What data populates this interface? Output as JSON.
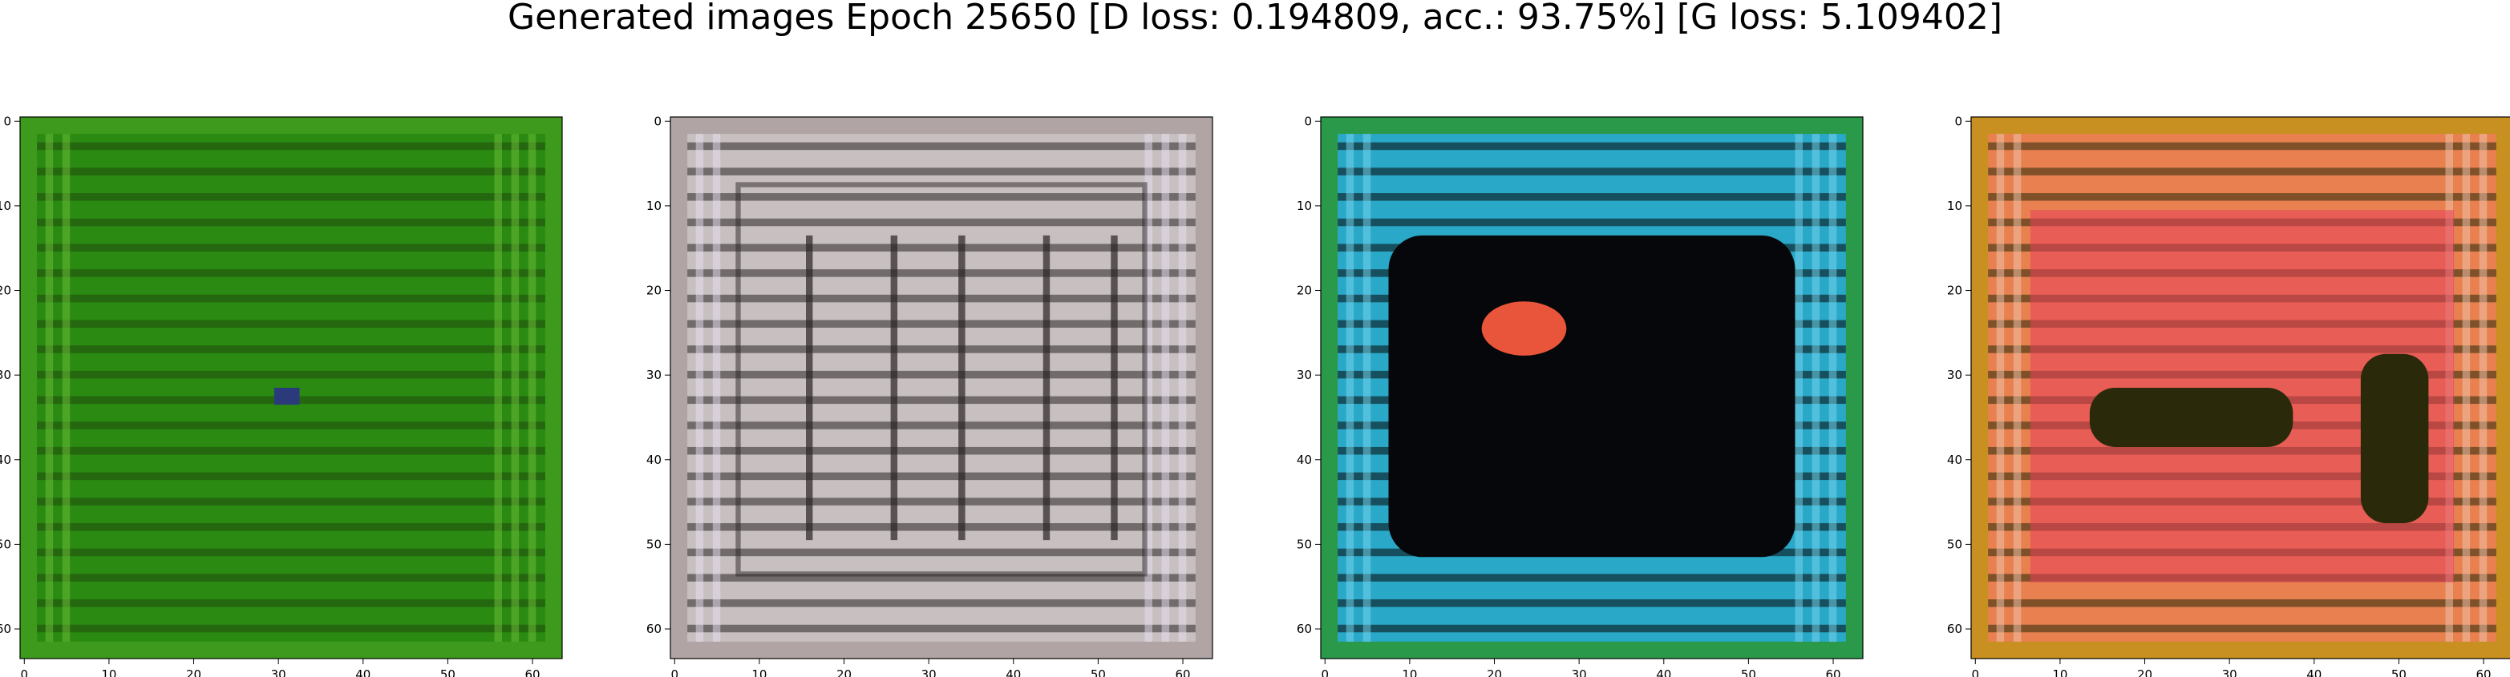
{
  "suptitle": "Generated images Epoch 25650 [D loss: 0.194809, acc.: 93.75%] [G loss: 5.109402]",
  "axis": {
    "x_ticks": [
      "0",
      "10",
      "20",
      "30",
      "40",
      "50",
      "60"
    ],
    "y_ticks": [
      "0",
      "10",
      "20",
      "30",
      "40",
      "50",
      "60"
    ],
    "x_tick_values": [
      0,
      10,
      20,
      30,
      40,
      50,
      60
    ],
    "y_tick_values": [
      0,
      10,
      20,
      30,
      40,
      50,
      60
    ],
    "xlim": [
      -0.5,
      63.5
    ],
    "ylim": [
      63.5,
      -0.5
    ]
  },
  "images": [
    {
      "name": "green-stripes",
      "base_color": "#2a8a12",
      "stripe_color": "#1f4a0c",
      "light_color": "#6fbf3a",
      "border_color": "#3d9a1c"
    },
    {
      "name": "grey-grid",
      "base_color": "#c8c0c0",
      "stripe_color": "#2a2424",
      "light_color": "#e8dff0",
      "border_color": "#b0a4a4"
    },
    {
      "name": "cyan-dark-blob",
      "base_color": "#2aa8c8",
      "stripe_color": "#05070a",
      "light_color": "#7ad8f0",
      "border_color": "#2a9a4a",
      "accent_color": "#e8553a"
    },
    {
      "name": "orange-red-frame",
      "base_color": "#e88050",
      "stripe_color": "#2a2a0a",
      "light_color": "#f0c8b0",
      "border_color": "#c89020",
      "accent_color": "#e8405a"
    }
  ]
}
